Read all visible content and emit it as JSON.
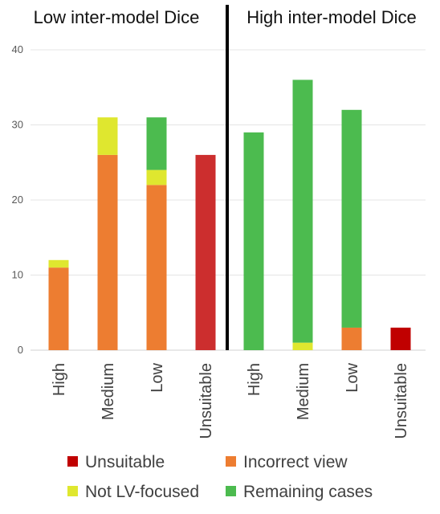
{
  "chart_data": {
    "type": "bar",
    "stacked": true,
    "ylim": [
      0,
      40
    ],
    "yticks": [
      0,
      10,
      20,
      30,
      40
    ],
    "grid": true,
    "legend_position": "bottom",
    "legend": [
      {
        "name": "Unsuitable",
        "color": "#c00000"
      },
      {
        "name": "Incorrect view",
        "color": "#ed7d31"
      },
      {
        "name": "Not LV-focused",
        "color": "#dfe72f"
      },
      {
        "name": "Remaining cases",
        "color": "#4cbb4f"
      }
    ],
    "panels": [
      {
        "title": "Low inter-model Dice",
        "categories": [
          "High",
          "Medium",
          "Low",
          "Unsuitable"
        ],
        "series": [
          {
            "name": "Unsuitable",
            "color": "#cc2e2e",
            "values": [
              0,
              0,
              0,
              26
            ]
          },
          {
            "name": "Incorrect view",
            "color": "#ed7d31",
            "values": [
              11,
              26,
              22,
              0
            ]
          },
          {
            "name": "Not LV-focused",
            "color": "#dfe72f",
            "values": [
              1,
              5,
              2,
              0
            ]
          },
          {
            "name": "Remaining cases",
            "color": "#4cbb4f",
            "values": [
              0,
              0,
              7,
              0
            ]
          }
        ]
      },
      {
        "title": "High inter-model Dice",
        "categories": [
          "High",
          "Medium",
          "Low",
          "Unsuitable"
        ],
        "series": [
          {
            "name": "Unsuitable",
            "color": "#c00000",
            "values": [
              0,
              0,
              0,
              3
            ]
          },
          {
            "name": "Incorrect view",
            "color": "#ed7d31",
            "values": [
              0,
              0,
              3,
              0
            ]
          },
          {
            "name": "Not LV-focused",
            "color": "#dfe72f",
            "values": [
              0,
              1,
              0,
              0
            ]
          },
          {
            "name": "Remaining cases",
            "color": "#4cbb4f",
            "values": [
              29,
              35,
              29,
              0
            ]
          }
        ]
      }
    ]
  }
}
